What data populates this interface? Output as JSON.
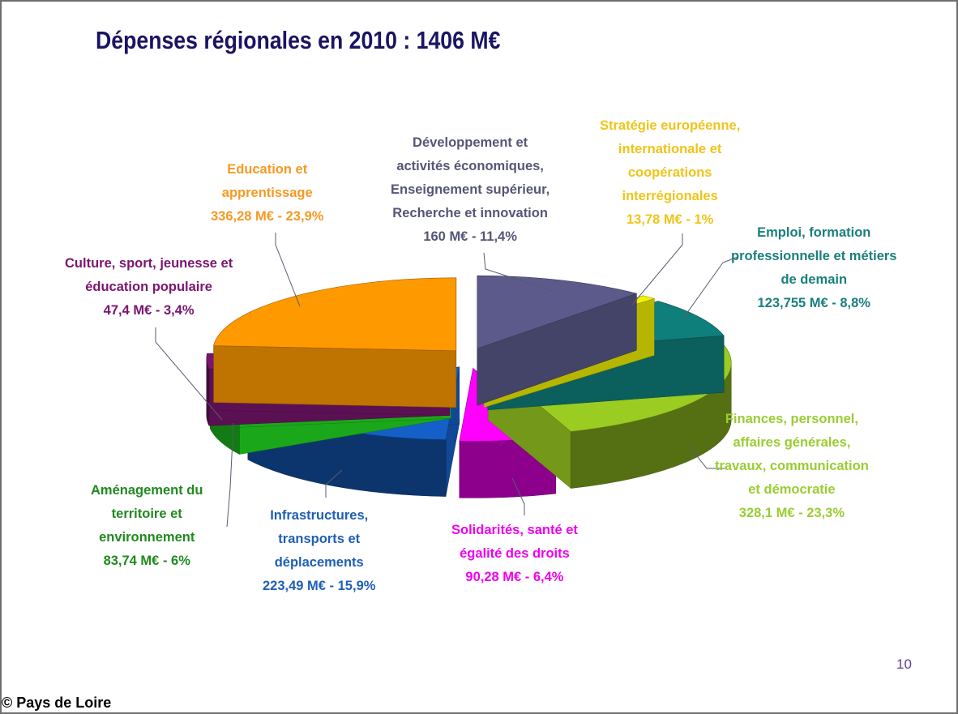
{
  "chart_data": {
    "type": "pie",
    "title": "Dépenses régionales en 2010 : 1406 M€",
    "slices": [
      {
        "lines": [
          "Développement et",
          "activités économiques,",
          "Enseignement supérieur,",
          "Recherche et innovation"
        ],
        "value_label": "160 M€ - 11,4%",
        "value": 160,
        "percent": 11.4,
        "color": "#5b5a8a"
      },
      {
        "lines": [
          "Stratégie européenne,",
          "internationale et",
          "coopérations",
          "interrégionales"
        ],
        "value_label": "13,78 M€ - 1%",
        "value": 13.78,
        "percent": 1,
        "color": "#f2f200"
      },
      {
        "lines": [
          "Emploi, formation",
          "professionnelle et métiers",
          "de demain"
        ],
        "value_label": "123,755 M€ - 8,8%",
        "value": 123.755,
        "percent": 8.8,
        "color": "#0f7f7c"
      },
      {
        "lines": [
          "Finances, personnel,",
          "affaires générales,",
          "travaux, communication",
          "et démocratie"
        ],
        "value_label": "328,1 M€ - 23,3%",
        "value": 328.1,
        "percent": 23.3,
        "color": "#9bcc22"
      },
      {
        "lines": [
          "Solidarités, santé et",
          "égalité des droits"
        ],
        "value_label": "90,28 M€ - 6,4%",
        "value": 90.28,
        "percent": 6.4,
        "color": "#ff00ff"
      },
      {
        "lines": [
          "Infrastructures,",
          "transports et",
          "déplacements"
        ],
        "value_label": "223,49 M€ - 15,9%",
        "value": 223.49,
        "percent": 15.9,
        "color": "#1560c8"
      },
      {
        "lines": [
          "Aménagement du",
          "territoire et",
          "environnement"
        ],
        "value_label": "83,74 M€ - 6%",
        "value": 83.74,
        "percent": 6,
        "color": "#22e022"
      },
      {
        "lines": [
          "Culture, sport, jeunesse et",
          "éducation populaire"
        ],
        "value_label": "47,4 M€ - 3,4%",
        "value": 47.4,
        "percent": 3.4,
        "color": "#7a1570"
      },
      {
        "lines": [
          "Education et",
          "apprentissage"
        ],
        "value_label": "336,28 M€ - 23,9%",
        "value": 336.28,
        "percent": 23.9,
        "color": "#ff9900"
      }
    ]
  },
  "label_colors": [
    "#555577",
    "#f0c419",
    "#1a7f7d",
    "#9acd32",
    "#ee00ee",
    "#1f5fb5",
    "#1f8a1f",
    "#7a1570",
    "#f59a23"
  ],
  "page_number": "10",
  "copyright": "© Pays de Loire"
}
